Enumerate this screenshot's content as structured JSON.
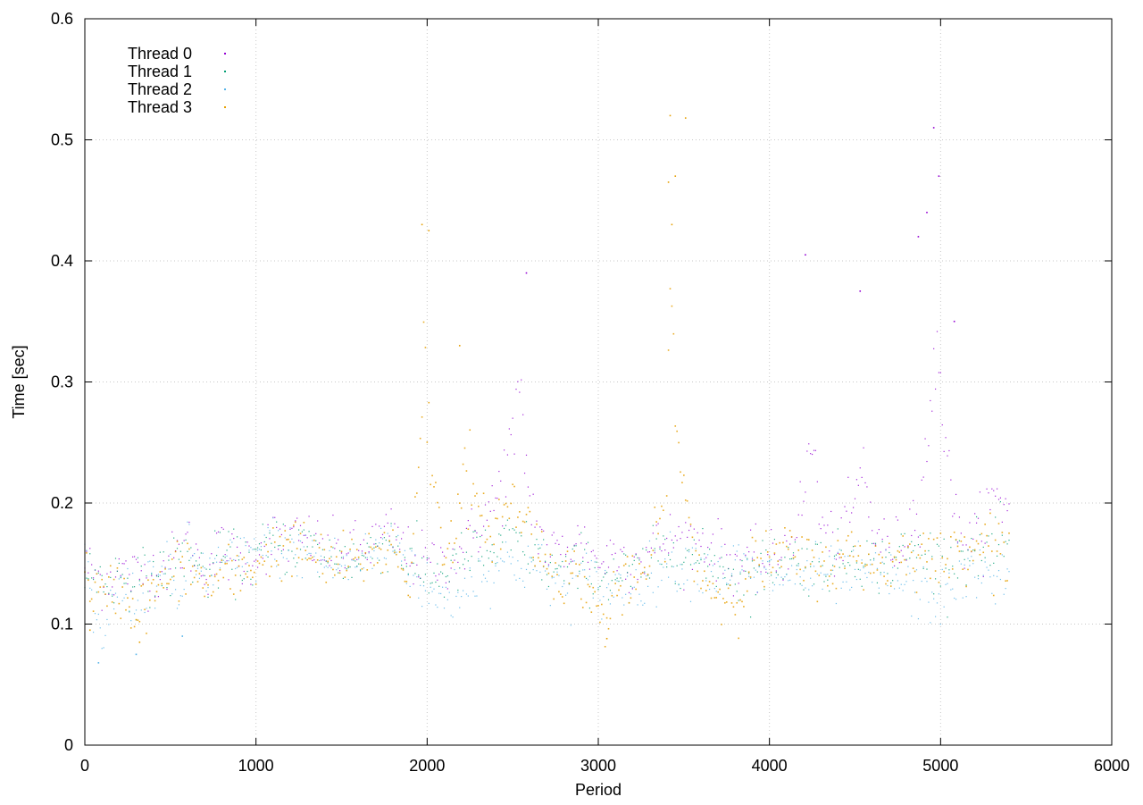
{
  "chart_data": {
    "type": "scatter",
    "title": "",
    "xlabel": "Period",
    "ylabel": "Time [sec]",
    "xlim": [
      0,
      6000
    ],
    "ylim": [
      0,
      0.6
    ],
    "xticks": [
      0,
      1000,
      2000,
      3000,
      4000,
      5000,
      6000
    ],
    "yticks": [
      0,
      0.1,
      0.2,
      0.3,
      0.4,
      0.5,
      0.6
    ],
    "xtick_labels": [
      "0",
      "1000",
      "2000",
      "3000",
      "4000",
      "5000",
      "6000"
    ],
    "ytick_labels": [
      "0",
      "0.1",
      "0.2",
      "0.3",
      "0.4",
      "0.5",
      "0.6"
    ],
    "grid": true,
    "legend_placement": "top-left",
    "x_range_of_points": [
      0,
      5400
    ],
    "series": [
      {
        "name": "Thread 0",
        "color": "#9400d3",
        "approx_x_step": 10,
        "values": [
          [
            0,
            0.15
          ],
          [
            100,
            0.136
          ],
          [
            200,
            0.143
          ],
          [
            300,
            0.14
          ],
          [
            400,
            0.143
          ],
          [
            500,
            0.15
          ],
          [
            600,
            0.168
          ],
          [
            700,
            0.145
          ],
          [
            800,
            0.162
          ],
          [
            900,
            0.15
          ],
          [
            1000,
            0.16
          ],
          [
            1100,
            0.17
          ],
          [
            1200,
            0.17
          ],
          [
            1300,
            0.17
          ],
          [
            1400,
            0.16
          ],
          [
            1500,
            0.16
          ],
          [
            1600,
            0.16
          ],
          [
            1700,
            0.168
          ],
          [
            1800,
            0.175
          ],
          [
            1900,
            0.155
          ],
          [
            2000,
            0.15
          ],
          [
            2100,
            0.15
          ],
          [
            2200,
            0.16
          ],
          [
            2300,
            0.18
          ],
          [
            2400,
            0.2
          ],
          [
            2500,
            0.25
          ],
          [
            2550,
            0.28
          ],
          [
            2600,
            0.2
          ],
          [
            2700,
            0.16
          ],
          [
            2800,
            0.16
          ],
          [
            2900,
            0.17
          ],
          [
            3000,
            0.15
          ],
          [
            3100,
            0.16
          ],
          [
            3200,
            0.15
          ],
          [
            3300,
            0.16
          ],
          [
            3400,
            0.17
          ],
          [
            3500,
            0.17
          ],
          [
            3600,
            0.17
          ],
          [
            3700,
            0.16
          ],
          [
            3800,
            0.15
          ],
          [
            3900,
            0.15
          ],
          [
            4000,
            0.15
          ],
          [
            4100,
            0.16
          ],
          [
            4200,
            0.2
          ],
          [
            4250,
            0.26
          ],
          [
            4300,
            0.18
          ],
          [
            4400,
            0.16
          ],
          [
            4500,
            0.2
          ],
          [
            4550,
            0.23
          ],
          [
            4600,
            0.18
          ],
          [
            4700,
            0.16
          ],
          [
            4800,
            0.17
          ],
          [
            4900,
            0.22
          ],
          [
            4950,
            0.3
          ],
          [
            5000,
            0.3
          ],
          [
            5050,
            0.24
          ],
          [
            5100,
            0.17
          ],
          [
            5200,
            0.17
          ],
          [
            5300,
            0.2
          ],
          [
            5380,
            0.2
          ]
        ],
        "outliers": [
          [
            4960,
            0.51
          ],
          [
            4990,
            0.47
          ],
          [
            4920,
            0.44
          ],
          [
            4870,
            0.42
          ],
          [
            4210,
            0.405
          ],
          [
            4530,
            0.375
          ],
          [
            5080,
            0.35
          ],
          [
            2580,
            0.39
          ]
        ]
      },
      {
        "name": "Thread 1",
        "color": "#009e73",
        "approx_x_step": 10,
        "values": [
          [
            0,
            0.145
          ],
          [
            100,
            0.135
          ],
          [
            200,
            0.14
          ],
          [
            300,
            0.135
          ],
          [
            400,
            0.14
          ],
          [
            500,
            0.145
          ],
          [
            600,
            0.16
          ],
          [
            700,
            0.14
          ],
          [
            800,
            0.155
          ],
          [
            900,
            0.15
          ],
          [
            1000,
            0.155
          ],
          [
            1100,
            0.165
          ],
          [
            1200,
            0.165
          ],
          [
            1300,
            0.165
          ],
          [
            1400,
            0.155
          ],
          [
            1500,
            0.155
          ],
          [
            1600,
            0.15
          ],
          [
            1700,
            0.165
          ],
          [
            1800,
            0.17
          ],
          [
            1900,
            0.15
          ],
          [
            2000,
            0.14
          ],
          [
            2100,
            0.14
          ],
          [
            2200,
            0.15
          ],
          [
            2300,
            0.16
          ],
          [
            2400,
            0.16
          ],
          [
            2500,
            0.17
          ],
          [
            2600,
            0.16
          ],
          [
            2700,
            0.15
          ],
          [
            2800,
            0.14
          ],
          [
            2900,
            0.15
          ],
          [
            3000,
            0.14
          ],
          [
            3100,
            0.14
          ],
          [
            3200,
            0.14
          ],
          [
            3300,
            0.15
          ],
          [
            3400,
            0.16
          ],
          [
            3500,
            0.16
          ],
          [
            3600,
            0.15
          ],
          [
            3700,
            0.15
          ],
          [
            3800,
            0.14
          ],
          [
            3900,
            0.14
          ],
          [
            4000,
            0.15
          ],
          [
            4100,
            0.155
          ],
          [
            4200,
            0.15
          ],
          [
            4300,
            0.15
          ],
          [
            4400,
            0.15
          ],
          [
            4500,
            0.16
          ],
          [
            4600,
            0.15
          ],
          [
            4700,
            0.15
          ],
          [
            4800,
            0.16
          ],
          [
            4900,
            0.16
          ],
          [
            5000,
            0.15
          ],
          [
            5100,
            0.16
          ],
          [
            5200,
            0.16
          ],
          [
            5300,
            0.16
          ],
          [
            5380,
            0.165
          ]
        ],
        "outliers": []
      },
      {
        "name": "Thread 2",
        "color": "#56b4e9",
        "approx_x_step": 10,
        "values": [
          [
            0,
            0.16
          ],
          [
            50,
            0.1
          ],
          [
            100,
            0.09
          ],
          [
            200,
            0.13
          ],
          [
            300,
            0.12
          ],
          [
            400,
            0.14
          ],
          [
            500,
            0.14
          ],
          [
            550,
            0.11
          ],
          [
            600,
            0.16
          ],
          [
            700,
            0.14
          ],
          [
            800,
            0.15
          ],
          [
            900,
            0.15
          ],
          [
            1000,
            0.16
          ],
          [
            1100,
            0.165
          ],
          [
            1200,
            0.16
          ],
          [
            1300,
            0.16
          ],
          [
            1400,
            0.15
          ],
          [
            1500,
            0.15
          ],
          [
            1600,
            0.15
          ],
          [
            1700,
            0.16
          ],
          [
            1800,
            0.17
          ],
          [
            1900,
            0.15
          ],
          [
            2000,
            0.125
          ],
          [
            2100,
            0.12
          ],
          [
            2200,
            0.13
          ],
          [
            2300,
            0.14
          ],
          [
            2400,
            0.15
          ],
          [
            2500,
            0.15
          ],
          [
            2600,
            0.15
          ],
          [
            2700,
            0.14
          ],
          [
            2800,
            0.13
          ],
          [
            2900,
            0.14
          ],
          [
            3000,
            0.13
          ],
          [
            3100,
            0.13
          ],
          [
            3200,
            0.13
          ],
          [
            3300,
            0.14
          ],
          [
            3400,
            0.15
          ],
          [
            3500,
            0.15
          ],
          [
            3600,
            0.15
          ],
          [
            3700,
            0.14
          ],
          [
            3800,
            0.15
          ],
          [
            3900,
            0.14
          ],
          [
            4000,
            0.14
          ],
          [
            4100,
            0.14
          ],
          [
            4200,
            0.14
          ],
          [
            4300,
            0.14
          ],
          [
            4400,
            0.14
          ],
          [
            4500,
            0.14
          ],
          [
            4600,
            0.14
          ],
          [
            4700,
            0.14
          ],
          [
            4800,
            0.13
          ],
          [
            4900,
            0.125
          ],
          [
            5000,
            0.12
          ],
          [
            5100,
            0.14
          ],
          [
            5200,
            0.14
          ],
          [
            5300,
            0.14
          ],
          [
            5380,
            0.14
          ]
        ],
        "outliers": [
          [
            80,
            0.068
          ],
          [
            300,
            0.075
          ],
          [
            570,
            0.09
          ]
        ]
      },
      {
        "name": "Thread 3",
        "color": "#e69f00",
        "approx_x_step": 10,
        "values": [
          [
            0,
            0.14
          ],
          [
            100,
            0.12
          ],
          [
            200,
            0.13
          ],
          [
            300,
            0.11
          ],
          [
            400,
            0.125
          ],
          [
            500,
            0.14
          ],
          [
            600,
            0.15
          ],
          [
            700,
            0.13
          ],
          [
            800,
            0.14
          ],
          [
            900,
            0.14
          ],
          [
            1000,
            0.15
          ],
          [
            1100,
            0.16
          ],
          [
            1200,
            0.165
          ],
          [
            1300,
            0.16
          ],
          [
            1400,
            0.15
          ],
          [
            1500,
            0.15
          ],
          [
            1600,
            0.15
          ],
          [
            1700,
            0.16
          ],
          [
            1800,
            0.165
          ],
          [
            1900,
            0.13
          ],
          [
            1950,
            0.25
          ],
          [
            1980,
            0.32
          ],
          [
            2000,
            0.27
          ],
          [
            2050,
            0.2
          ],
          [
            2100,
            0.16
          ],
          [
            2200,
            0.2
          ],
          [
            2250,
            0.23
          ],
          [
            2300,
            0.18
          ],
          [
            2400,
            0.18
          ],
          [
            2500,
            0.2
          ],
          [
            2600,
            0.18
          ],
          [
            2700,
            0.15
          ],
          [
            2800,
            0.14
          ],
          [
            2900,
            0.14
          ],
          [
            3000,
            0.11
          ],
          [
            3050,
            0.1
          ],
          [
            3100,
            0.13
          ],
          [
            3200,
            0.13
          ],
          [
            3300,
            0.15
          ],
          [
            3400,
            0.2
          ],
          [
            3420,
            0.38
          ],
          [
            3440,
            0.33
          ],
          [
            3460,
            0.26
          ],
          [
            3500,
            0.2
          ],
          [
            3600,
            0.14
          ],
          [
            3700,
            0.125
          ],
          [
            3800,
            0.12
          ],
          [
            3900,
            0.15
          ],
          [
            4000,
            0.15
          ],
          [
            4100,
            0.16
          ],
          [
            4200,
            0.15
          ],
          [
            4300,
            0.15
          ],
          [
            4400,
            0.15
          ],
          [
            4500,
            0.16
          ],
          [
            4600,
            0.15
          ],
          [
            4700,
            0.15
          ],
          [
            4800,
            0.16
          ],
          [
            4900,
            0.16
          ],
          [
            5000,
            0.15
          ],
          [
            5100,
            0.16
          ],
          [
            5200,
            0.17
          ],
          [
            5300,
            0.17
          ],
          [
            5380,
            0.16
          ]
        ],
        "outliers": [
          [
            3420,
            0.52
          ],
          [
            3510,
            0.518
          ],
          [
            3410,
            0.465
          ],
          [
            3450,
            0.47
          ],
          [
            1970,
            0.43
          ],
          [
            2010,
            0.425
          ],
          [
            3430,
            0.43
          ],
          [
            2190,
            0.33
          ],
          [
            30,
            0.095
          ],
          [
            320,
            0.085
          ],
          [
            3050,
            0.088
          ]
        ]
      }
    ]
  }
}
